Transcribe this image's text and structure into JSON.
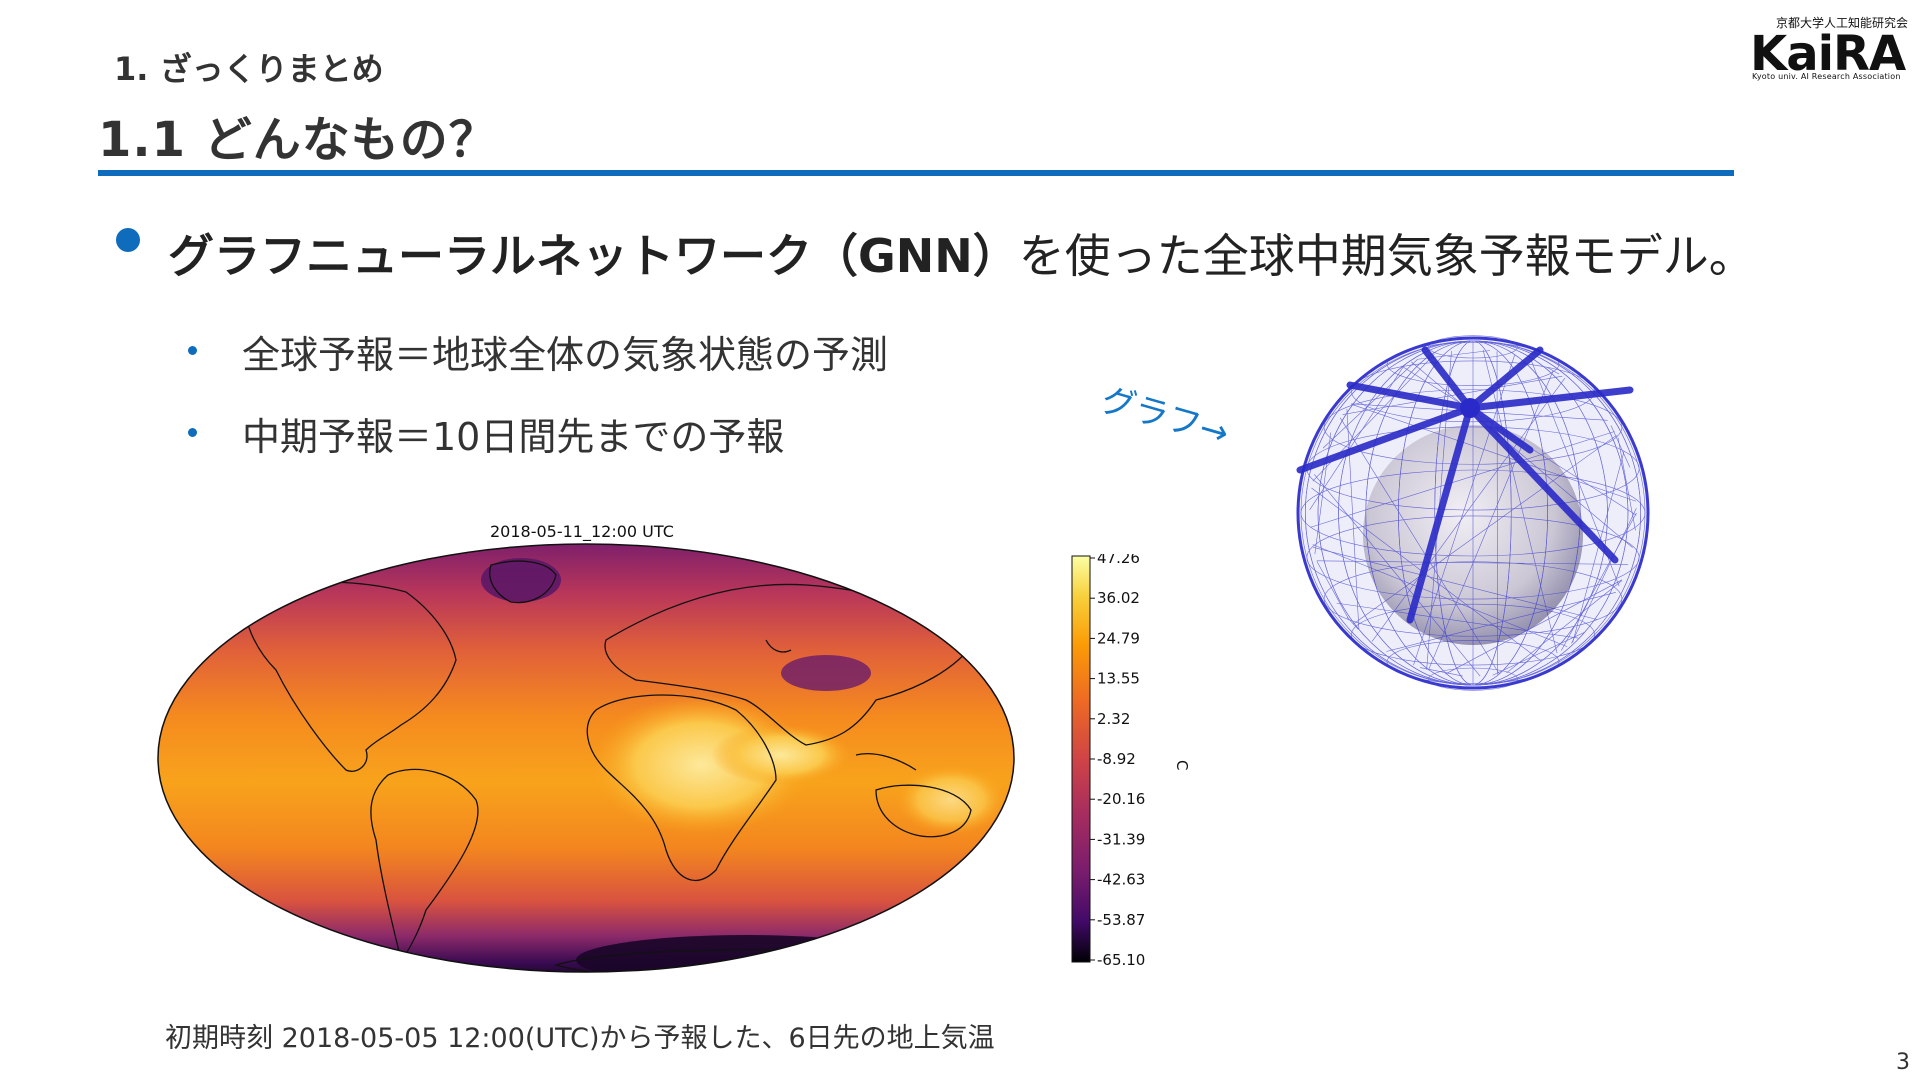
{
  "header": {
    "section": "1. ざっくりまとめ",
    "title": "1.1 どんなもの？"
  },
  "logo": {
    "top": "京都大学人工知能研究会",
    "main": "KaiRA",
    "sub": "Kyoto univ. AI Research Association"
  },
  "bullets": {
    "main_bold": "グラフニューラルネットワーク（GNN）",
    "main_rest": "を使った全球中期気象予報モデル。",
    "sub": [
      "全球予報＝地球全体の気象状態の予測",
      "中期予報＝10日間先までの予報"
    ]
  },
  "figure": {
    "map_title": "2018-05-11_12:00 UTC",
    "colorbar_ticks": [
      "47.26",
      "36.02",
      "24.79",
      "13.55",
      "2.32",
      "-8.92",
      "-20.16",
      "-31.39",
      "-42.63",
      "-53.87",
      "-65.10"
    ],
    "colorbar_unit": "C",
    "caption": "初期時刻 2018-05-05 12:00(UTC)から予報した、6日先の地上気温",
    "graph_label": "グラフ→"
  },
  "colors": {
    "accent": "#0f6cbd",
    "graph_label": "#1477c8",
    "mesh": "#3a3ad0"
  },
  "page_number": "3"
}
